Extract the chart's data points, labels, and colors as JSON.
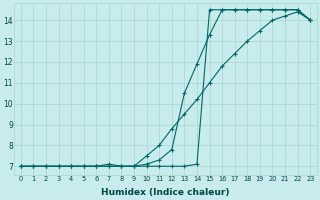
{
  "xlabel": "Humidex (Indice chaleur)",
  "bg_color": "#c8ecec",
  "grid_color": "#a8d4d4",
  "line_color": "#006666",
  "xlim": [
    -0.5,
    23.5
  ],
  "ylim": [
    6.6,
    14.8
  ],
  "xticks": [
    0,
    1,
    2,
    3,
    4,
    5,
    6,
    7,
    8,
    9,
    10,
    11,
    12,
    13,
    14,
    15,
    16,
    17,
    18,
    19,
    20,
    21,
    22,
    23
  ],
  "yticks": [
    7,
    8,
    9,
    10,
    11,
    12,
    13,
    14
  ],
  "series1_x": [
    0,
    1,
    2,
    3,
    4,
    5,
    6,
    7,
    8,
    9,
    10,
    11,
    12,
    13,
    14,
    15,
    16,
    17,
    18,
    19,
    20,
    21,
    22,
    23
  ],
  "series1_y": [
    7.0,
    7.0,
    7.0,
    7.0,
    7.0,
    7.0,
    7.0,
    7.0,
    7.0,
    7.0,
    7.0,
    7.0,
    7.0,
    7.0,
    7.1,
    14.5,
    14.5,
    14.5,
    14.5,
    14.5,
    14.5,
    14.5,
    14.5,
    14.0
  ],
  "series2_x": [
    0,
    1,
    2,
    3,
    4,
    5,
    6,
    7,
    8,
    9,
    10,
    11,
    12,
    13,
    14,
    15,
    16,
    17,
    18,
    19,
    20,
    21,
    22,
    23
  ],
  "series2_y": [
    7.0,
    7.0,
    7.0,
    7.0,
    7.0,
    7.0,
    7.0,
    7.1,
    7.0,
    7.0,
    7.1,
    7.3,
    7.8,
    10.5,
    11.9,
    13.3,
    14.5,
    14.5,
    14.5,
    14.5,
    14.5,
    14.5,
    14.5,
    14.0
  ],
  "series3_x": [
    0,
    1,
    2,
    3,
    4,
    5,
    6,
    7,
    8,
    9,
    10,
    11,
    12,
    13,
    14,
    15,
    16,
    17,
    18,
    19,
    20,
    21,
    22,
    23
  ],
  "series3_y": [
    7.0,
    7.0,
    7.0,
    7.0,
    7.0,
    7.0,
    7.0,
    7.0,
    7.0,
    7.0,
    7.5,
    8.0,
    8.8,
    9.5,
    10.2,
    11.0,
    11.8,
    12.4,
    13.0,
    13.5,
    14.0,
    14.2,
    14.4,
    14.0
  ]
}
